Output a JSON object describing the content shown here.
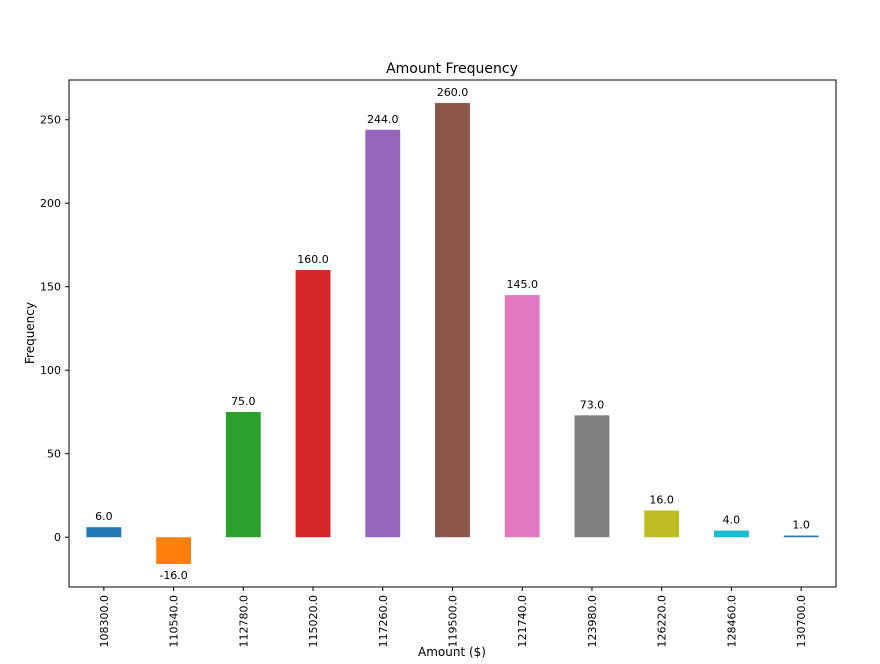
{
  "chart_data": {
    "type": "bar",
    "title": "Amount Frequency",
    "xlabel": "Amount ($)",
    "ylabel": "Frequency",
    "categories": [
      "108300.0",
      "110540.0",
      "112780.0",
      "115020.0",
      "117260.0",
      "119500.0",
      "121740.0",
      "123980.0",
      "126220.0",
      "128460.0",
      "130700.0"
    ],
    "values": [
      6,
      -16,
      75,
      160,
      244,
      260,
      145,
      73,
      16,
      4,
      1
    ],
    "data_labels": [
      "6.0",
      "-16.0",
      "75.0",
      "160.0",
      "244.0",
      "260.0",
      "145.0",
      "73.0",
      "16.0",
      "4.0",
      "1.0"
    ],
    "colors": [
      "#1f77b4",
      "#ff7f0e",
      "#2ca02c",
      "#d62728",
      "#9467bd",
      "#8c564b",
      "#e377c2",
      "#7f7f7f",
      "#bcbd22",
      "#17becf",
      "#1f77b4"
    ],
    "ylim": [
      -29.8,
      273.8
    ],
    "yticks": [
      0,
      50,
      100,
      150,
      200,
      250
    ],
    "ytick_labels": [
      "0",
      "50",
      "100",
      "150",
      "200",
      "250"
    ],
    "grid": false,
    "legend": "none"
  }
}
